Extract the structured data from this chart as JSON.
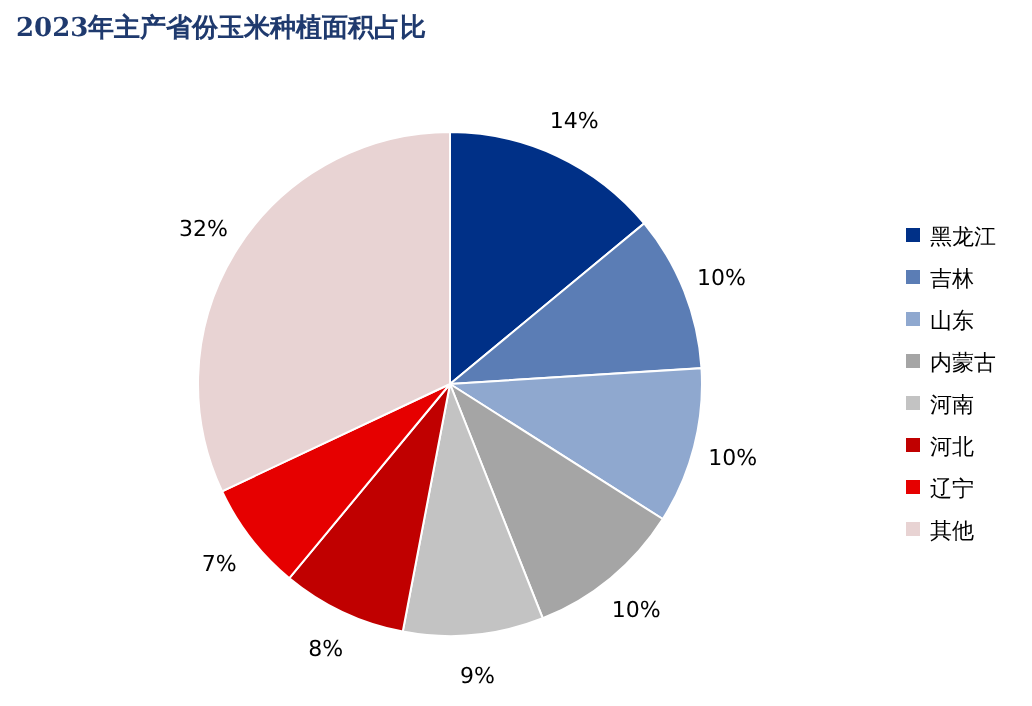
{
  "chart_data": {
    "type": "pie",
    "title": "2023年主产省份玉米种植面积占比",
    "categories": [
      "黑龙江",
      "吉林",
      "山东",
      "内蒙古",
      "河南",
      "河北",
      "辽宁",
      "其他"
    ],
    "values": [
      14,
      10,
      10,
      10,
      9,
      8,
      7,
      32
    ],
    "colors": [
      "#003087",
      "#5b7db5",
      "#8fa8cf",
      "#a5a5a5",
      "#c3c3c3",
      "#c00000",
      "#e60000",
      "#e8d3d3"
    ],
    "value_labels": [
      "14%",
      "10%",
      "10%",
      "10%",
      "9%",
      "8%",
      "7%",
      "32%"
    ],
    "legend": "right"
  }
}
